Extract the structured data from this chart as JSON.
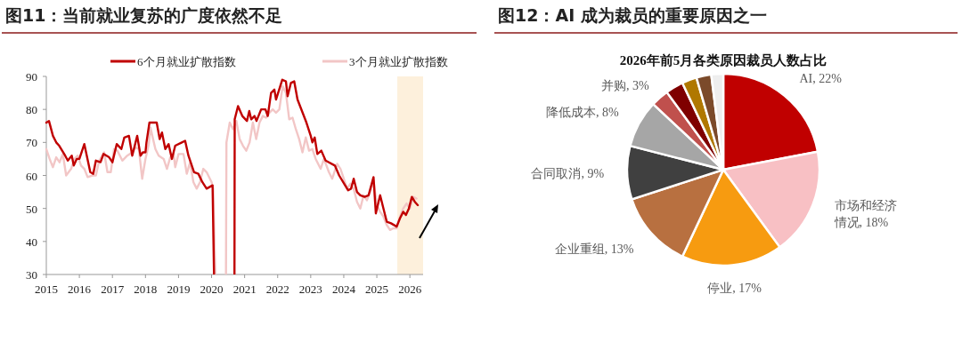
{
  "chart_data": [
    {
      "type": "line",
      "title": "图11：当前就业复苏的广度依然不足",
      "legend": "top",
      "grid": false,
      "xlim": [
        2015,
        2026.4
      ],
      "xticks": [
        {
          "value": 2015,
          "label": "2015"
        },
        {
          "value": 2016,
          "label": "2016"
        },
        {
          "value": 2017,
          "label": "2017"
        },
        {
          "value": 2018,
          "label": "2018"
        },
        {
          "value": 2019,
          "label": "2019"
        },
        {
          "value": 2020,
          "label": "2020"
        },
        {
          "value": 2021,
          "label": "2021"
        },
        {
          "value": 2022,
          "label": "2022"
        },
        {
          "value": 2023,
          "label": "2023"
        },
        {
          "value": 2024,
          "label": "2024"
        },
        {
          "value": 2025,
          "label": "2025"
        },
        {
          "value": 2026,
          "label": "2026"
        }
      ],
      "ylim": [
        30,
        90
      ],
      "yticks": [
        30,
        40,
        50,
        60,
        70,
        80,
        90
      ],
      "bands": [
        {
          "axis": "x",
          "from": 2025.62,
          "to": 2026.4,
          "color": "#fdf0dc"
        }
      ],
      "series": [
        {
          "name": "6个月就业扩散指数",
          "color": "#c00000",
          "x": [
            2015.0,
            2015.08,
            2015.2,
            2015.3,
            2015.39,
            2015.57,
            2015.65,
            2015.77,
            2015.83,
            2015.92,
            2016.0,
            2016.15,
            2016.33,
            2016.42,
            2016.5,
            2016.64,
            2016.73,
            2016.9,
            2017.0,
            2017.13,
            2017.27,
            2017.36,
            2017.5,
            2017.6,
            2017.75,
            2017.85,
            2017.92,
            2018.0,
            2018.03,
            2018.12,
            2018.34,
            2018.43,
            2018.5,
            2018.6,
            2018.7,
            2018.8,
            2018.9,
            2019.1,
            2019.2,
            2019.3,
            2019.47,
            2019.6,
            2019.72,
            2019.85,
            2020.03,
            2020.1,
            2020.69,
            2020.7,
            2020.8,
            2020.93,
            2021.07,
            2021.14,
            2021.2,
            2021.3,
            2021.36,
            2021.5,
            2021.63,
            2021.7,
            2021.8,
            2021.9,
            2021.95,
            2022.14,
            2022.25,
            2022.3,
            2022.4,
            2022.5,
            2022.6,
            2022.87,
            2023.0,
            2023.05,
            2023.12,
            2023.2,
            2023.32,
            2023.45,
            2023.73,
            2023.86,
            2024.04,
            2024.13,
            2024.22,
            2024.3,
            2024.4,
            2024.5,
            2024.63,
            2024.75,
            2024.9,
            2024.97,
            2025.1,
            2025.2,
            2025.3,
            2025.43,
            2025.6,
            2025.7,
            2025.8,
            2025.88,
            2025.97,
            2026.06,
            2026.15,
            2026.24
          ],
          "values": [
            76,
            76.5,
            72,
            70,
            69,
            66,
            64.5,
            66,
            63,
            65,
            65,
            69.5,
            61,
            60.5,
            64.5,
            64,
            66.5,
            65.5,
            64,
            69.5,
            68,
            71.5,
            72,
            66,
            72,
            66,
            67,
            67,
            70,
            76,
            76,
            71,
            73,
            68,
            69.5,
            65,
            69,
            70,
            70.5,
            66,
            61,
            60.5,
            58,
            56,
            57,
            null,
            null,
            77,
            81,
            78,
            76.5,
            79.5,
            77,
            78,
            76.5,
            80,
            80,
            78,
            85,
            86,
            83,
            89,
            88.5,
            84,
            88,
            88.5,
            83,
            76,
            72,
            70,
            71.5,
            66.5,
            67.5,
            64.5,
            63,
            60,
            57,
            55.5,
            56,
            59,
            55,
            54,
            53.5,
            54,
            59.5,
            48.5,
            54,
            50,
            46,
            45.5,
            44.5,
            47,
            49,
            48,
            50,
            53.5,
            52,
            51
          ]
        },
        {
          "name": "3个月就业扩散指数",
          "color": "#f2c6c6",
          "x": [
            2015.0,
            2015.1,
            2015.2,
            2015.3,
            2015.4,
            2015.5,
            2015.6,
            2015.75,
            2015.85,
            2015.95,
            2016.05,
            2016.15,
            2016.25,
            2016.4,
            2016.5,
            2016.6,
            2016.75,
            2016.85,
            2016.95,
            2017.05,
            2017.15,
            2017.3,
            2017.45,
            2017.6,
            2017.7,
            2017.8,
            2017.9,
            2018.0,
            2018.1,
            2018.15,
            2018.3,
            2018.4,
            2018.55,
            2018.65,
            2018.75,
            2018.85,
            2018.9,
            2019.0,
            2019.15,
            2019.25,
            2019.35,
            2019.45,
            2019.55,
            2019.65,
            2019.75,
            2019.85,
            2020.0,
            2020.05,
            2020.15,
            2020.43,
            2020.45,
            2020.55,
            2020.65,
            2020.75,
            2020.85,
            2020.95,
            2021.05,
            2021.15,
            2021.25,
            2021.35,
            2021.45,
            2021.55,
            2021.65,
            2021.75,
            2021.85,
            2021.95,
            2022.05,
            2022.15,
            2022.25,
            2022.35,
            2022.45,
            2022.55,
            2022.65,
            2022.75,
            2022.85,
            2022.95,
            2023.05,
            2023.15,
            2023.3,
            2023.4,
            2023.55,
            2023.65,
            2023.8,
            2023.9,
            2024.0,
            2024.1,
            2024.2,
            2024.3,
            2024.4,
            2024.5,
            2024.6,
            2024.7,
            2024.8,
            2024.9,
            2025.0,
            2025.1,
            2025.2,
            2025.3,
            2025.4,
            2025.5,
            2025.6,
            2025.7,
            2025.8,
            2025.9,
            2026.0,
            2026.1,
            2026.2
          ],
          "values": [
            68,
            65,
            62.5,
            65.5,
            64,
            66.5,
            60,
            62,
            65,
            66,
            63,
            62,
            59.5,
            60,
            60,
            64.5,
            67,
            61,
            61,
            68,
            67.5,
            64.5,
            66,
            67,
            68.5,
            68,
            59,
            65,
            69.5,
            74.5,
            68,
            66,
            65,
            62,
            65.5,
            66.5,
            62.5,
            66.5,
            66.5,
            60.5,
            64,
            58,
            56,
            58,
            62,
            61,
            58,
            56,
            null,
            null,
            70,
            76,
            74,
            76.5,
            71,
            69,
            67.5,
            70,
            76,
            71,
            76,
            78,
            77.5,
            79,
            80,
            79,
            80,
            87,
            85,
            77,
            77.5,
            74,
            71,
            67,
            71.5,
            67.5,
            68,
            65,
            62,
            65,
            61,
            59,
            63.5,
            62,
            59,
            56,
            57.5,
            56,
            52,
            50,
            54,
            52.5,
            55,
            58.5,
            51,
            49,
            47.5,
            45,
            43.5,
            44,
            44,
            47.5,
            50,
            51.5,
            50,
            53.5,
            53
          ]
        }
      ]
    },
    {
      "type": "pie",
      "title": "图12：AI 成为裁员的重要原因之一",
      "subtitle": "2026年前5月各类原因裁员人数占比",
      "categories": [
        "AI",
        "市场和经济情况",
        "停业",
        "企业重组",
        "合同取消",
        "降低成本",
        "并购",
        null,
        null,
        null,
        null
      ],
      "values": [
        22,
        18,
        17,
        13,
        9,
        8,
        3,
        3,
        2.5,
        2.5,
        2
      ],
      "colors": [
        "#c00000",
        "#f8c0c4",
        "#f79b10",
        "#b87040",
        "#404040",
        "#a6a6a6",
        "#c0504d",
        "#7f0000",
        "#b07800",
        "#7b4a2a",
        "#eeeeee"
      ],
      "value_labels": [
        "22%",
        "18%",
        "17%",
        "13%",
        "9%",
        "8%",
        "3%",
        null,
        null,
        null,
        null
      ]
    }
  ]
}
